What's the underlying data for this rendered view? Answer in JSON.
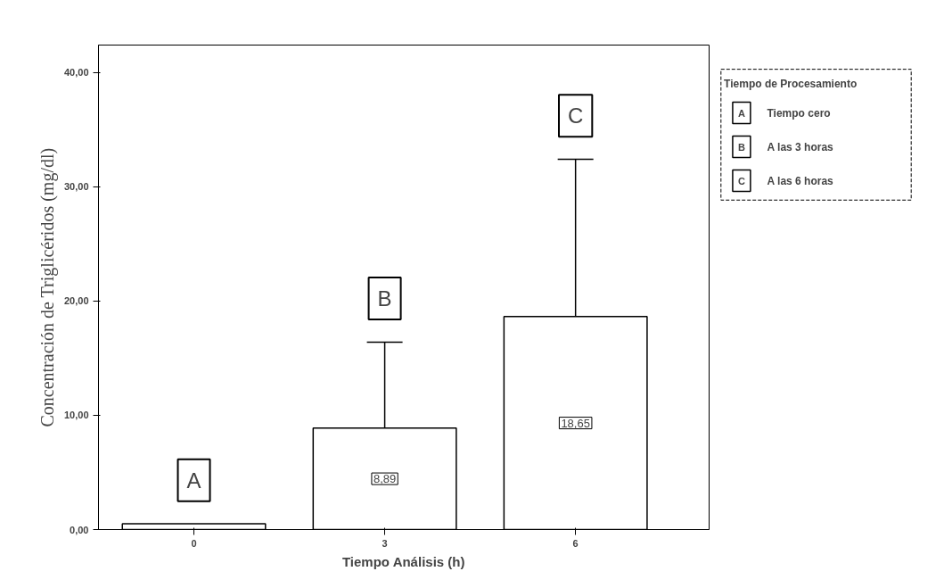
{
  "chart_data": {
    "type": "bar",
    "xlabel": "Tiempo Análisis (h)",
    "ylabel": "Concentración de Triglicéridos (mg/dl)",
    "legend_title": "Tiempo de Procesamiento",
    "categories": [
      "0",
      "3",
      "6"
    ],
    "values": [
      0.5,
      8.89,
      18.65
    ],
    "color": "#ffffff",
    "errors": [
      null,
      [
        8.89,
        16.4
      ],
      [
        18.65,
        32.4
      ]
    ],
    "value_labels": [
      null,
      "8,89",
      "18,65"
    ],
    "ylim": [
      0,
      42.4
    ],
    "yticks": [
      {
        "value": 0,
        "label": "0,00"
      },
      {
        "value": 10,
        "label": "10,00"
      },
      {
        "value": 20,
        "label": "20,00"
      },
      {
        "value": 30,
        "label": "30,00"
      },
      {
        "value": 40,
        "label": "40,00"
      }
    ],
    "grid": false,
    "annotations": [
      "A",
      "B",
      "C",
      "A Tiempo cero",
      "B A las 3 horas",
      "C A las 6 horas"
    ]
  }
}
